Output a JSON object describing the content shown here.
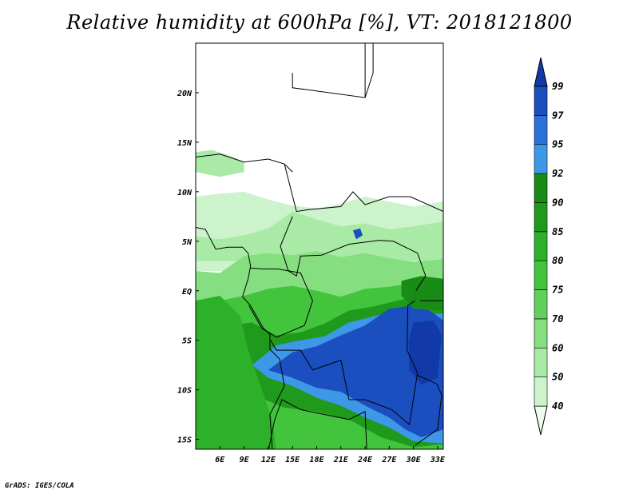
{
  "title": "Relative humidity at 600hPa [%], VT: 2018121800",
  "credit": "GrADS: IGES/COLA",
  "map": {
    "lon_range": [
      3,
      33.7
    ],
    "lat_range": [
      -16,
      25
    ],
    "lon_ticks": [
      {
        "value": 6,
        "label": "6E"
      },
      {
        "value": 9,
        "label": "9E"
      },
      {
        "value": 12,
        "label": "12E"
      },
      {
        "value": 15,
        "label": "15E"
      },
      {
        "value": 18,
        "label": "18E"
      },
      {
        "value": 21,
        "label": "21E"
      },
      {
        "value": 24,
        "label": "24E"
      },
      {
        "value": 27,
        "label": "27E"
      },
      {
        "value": 30,
        "label": "30E"
      },
      {
        "value": 33,
        "label": "33E"
      }
    ],
    "lat_ticks": [
      {
        "value": 20,
        "label": "20N"
      },
      {
        "value": 15,
        "label": "15N"
      },
      {
        "value": 10,
        "label": "10N"
      },
      {
        "value": 5,
        "label": "5N"
      },
      {
        "value": 0,
        "label": "EQ"
      },
      {
        "value": -5,
        "label": "5S"
      },
      {
        "value": -10,
        "label": "10S"
      },
      {
        "value": -15,
        "label": "15S"
      }
    ],
    "field_regions": [
      {
        "name": "sahel-band",
        "rh": 40,
        "poly": [
          [
            3,
            8
          ],
          [
            3,
            9.5
          ],
          [
            6,
            9.8
          ],
          [
            9,
            10
          ],
          [
            12,
            9.2
          ],
          [
            15,
            8.6
          ],
          [
            18,
            8.3
          ],
          [
            21,
            8.8
          ],
          [
            24,
            9.5
          ],
          [
            27,
            9
          ],
          [
            30,
            8.5
          ],
          [
            33.7,
            9
          ],
          [
            33.7,
            2
          ],
          [
            3,
            2
          ]
        ]
      },
      {
        "name": "west-patch",
        "rh": 50,
        "poly": [
          [
            3,
            14
          ],
          [
            5,
            14.2
          ],
          [
            7,
            13.7
          ],
          [
            9,
            13
          ],
          [
            9,
            12
          ],
          [
            6,
            11.5
          ],
          [
            3,
            12
          ]
        ]
      },
      {
        "name": "north-tongue",
        "rh": 50,
        "poly": [
          [
            15,
            8
          ],
          [
            18,
            7.2
          ],
          [
            21,
            6.5
          ],
          [
            24,
            6.8
          ],
          [
            27,
            6.2
          ],
          [
            30,
            6.5
          ],
          [
            33.7,
            7
          ],
          [
            33.7,
            3
          ],
          [
            3,
            3
          ],
          [
            3,
            5.5
          ],
          [
            6,
            5.2
          ],
          [
            9,
            5.6
          ],
          [
            12,
            6.3
          ]
        ]
      },
      {
        "name": "central-north",
        "rh": 60,
        "poly": [
          [
            3,
            2
          ],
          [
            6,
            1.8
          ],
          [
            9,
            3.5
          ],
          [
            12,
            3.8
          ],
          [
            15,
            3.6
          ],
          [
            18,
            4
          ],
          [
            21,
            3.4
          ],
          [
            24,
            3.8
          ],
          [
            27,
            3.3
          ],
          [
            30,
            2.9
          ],
          [
            33.7,
            3.2
          ],
          [
            33.7,
            -16
          ],
          [
            3,
            -16
          ]
        ]
      },
      {
        "name": "moist-belt",
        "rh": 75,
        "poly": [
          [
            3,
            -1.5
          ],
          [
            6,
            -1
          ],
          [
            9,
            -0.5
          ],
          [
            12,
            0.2
          ],
          [
            15,
            0.5
          ],
          [
            18,
            0
          ],
          [
            21,
            -0.6
          ],
          [
            24,
            0.2
          ],
          [
            27,
            0.4
          ],
          [
            30,
            0.8
          ],
          [
            33.7,
            0.5
          ],
          [
            33.7,
            -16
          ],
          [
            3,
            -16
          ]
        ]
      },
      {
        "name": "congo-basin",
        "rh": 85,
        "poly": [
          [
            4,
            -4
          ],
          [
            7,
            -3.5
          ],
          [
            10,
            -3.2
          ],
          [
            13,
            -4.5
          ],
          [
            16,
            -4.2
          ],
          [
            19,
            -3.3
          ],
          [
            22,
            -2
          ],
          [
            25,
            -1.6
          ],
          [
            28,
            -1
          ],
          [
            31,
            -0.5
          ],
          [
            33.7,
            -1
          ],
          [
            33.7,
            -15.5
          ],
          [
            30,
            -15.8
          ],
          [
            26,
            -14.8
          ],
          [
            22,
            -13
          ],
          [
            18,
            -12.2
          ],
          [
            14,
            -11.8
          ],
          [
            11,
            -10.8
          ],
          [
            8,
            -9.8
          ],
          [
            5,
            -8.5
          ],
          [
            3,
            -7
          ]
        ]
      },
      {
        "name": "southern-saturation",
        "rh": 92,
        "poly": [
          [
            13,
            -5.5
          ],
          [
            16,
            -5
          ],
          [
            19,
            -4.6
          ],
          [
            22,
            -3.2
          ],
          [
            25,
            -2.6
          ],
          [
            28,
            -2
          ],
          [
            31,
            -2.4
          ],
          [
            33.7,
            -2.3
          ],
          [
            33.7,
            -15.4
          ],
          [
            30,
            -15.2
          ],
          [
            27,
            -13.8
          ],
          [
            24,
            -12.8
          ],
          [
            21,
            -11.6
          ],
          [
            18,
            -10.8
          ],
          [
            15,
            -9.6
          ],
          [
            12,
            -8.8
          ],
          [
            10,
            -7.5
          ]
        ]
      },
      {
        "name": "saturated-core",
        "rh": 97,
        "poly": [
          [
            15,
            -6.2
          ],
          [
            18,
            -5.6
          ],
          [
            21,
            -4.5
          ],
          [
            24,
            -3.5
          ],
          [
            27,
            -1.8
          ],
          [
            30,
            -1.5
          ],
          [
            32,
            -2
          ],
          [
            33.7,
            -3
          ],
          [
            33.7,
            -14
          ],
          [
            31,
            -14.8
          ],
          [
            29,
            -14
          ],
          [
            27,
            -12.8
          ],
          [
            24,
            -11.6
          ],
          [
            21,
            -10.2
          ],
          [
            18,
            -9.8
          ],
          [
            15,
            -8.8
          ],
          [
            12,
            -8
          ]
        ]
      },
      {
        "name": "lake-victoria-pocket",
        "rh": 99,
        "poly": [
          [
            30,
            -3.2
          ],
          [
            32.5,
            -3
          ],
          [
            33.5,
            -4.5
          ],
          [
            33,
            -8.8
          ],
          [
            31,
            -9.5
          ],
          [
            29.5,
            -8
          ],
          [
            29.4,
            -5
          ]
        ]
      },
      {
        "name": "northern-speck",
        "rh": 97,
        "poly": [
          [
            22.5,
            6.1
          ],
          [
            23.4,
            6.3
          ],
          [
            23.7,
            5.6
          ],
          [
            22.9,
            5.2
          ]
        ]
      },
      {
        "name": "atlantic-margin",
        "rh": 80,
        "poly": [
          [
            3,
            -1
          ],
          [
            6,
            -0.5
          ],
          [
            8.5,
            -2.5
          ],
          [
            9.5,
            -6
          ],
          [
            11,
            -9.5
          ],
          [
            12.5,
            -13
          ],
          [
            13,
            -16
          ],
          [
            3,
            -16
          ]
        ]
      },
      {
        "name": "rift-valley-moisture",
        "rh": 90,
        "poly": [
          [
            28.5,
            1
          ],
          [
            31,
            1.5
          ],
          [
            33.7,
            1.2
          ],
          [
            33.7,
            -2
          ],
          [
            30,
            -1.8
          ],
          [
            28.5,
            -0.5
          ]
        ]
      }
    ],
    "boundaries": [
      [
        [
          3,
          13.5
        ],
        [
          6,
          13.8
        ],
        [
          9,
          13
        ],
        [
          12,
          13.3
        ],
        [
          14,
          12.8
        ],
        [
          15,
          12
        ]
      ],
      [
        [
          14,
          12.8
        ],
        [
          15.5,
          8
        ],
        [
          17,
          8.2
        ],
        [
          21,
          8.5
        ],
        [
          22.5,
          10
        ],
        [
          24,
          8.7
        ],
        [
          27,
          9.5
        ],
        [
          29.6,
          9.5
        ],
        [
          33.7,
          8
        ]
      ],
      [
        [
          15,
          22
        ],
        [
          15,
          20.5
        ],
        [
          24,
          19.5
        ],
        [
          24,
          25
        ]
      ],
      [
        [
          24,
          19.5
        ],
        [
          25,
          22
        ],
        [
          25,
          25
        ]
      ],
      [
        [
          15,
          7.5
        ],
        [
          13.5,
          4.5
        ],
        [
          14.5,
          2
        ],
        [
          15.5,
          1.5
        ],
        [
          16,
          3.5
        ],
        [
          18.6,
          3.6
        ],
        [
          22,
          4.7
        ],
        [
          25.8,
          5.1
        ],
        [
          27.5,
          5
        ],
        [
          30.5,
          3.8
        ],
        [
          31.5,
          1.5
        ],
        [
          30.3,
          0
        ]
      ],
      [
        [
          9.8,
          2.3
        ],
        [
          11.3,
          2.2
        ],
        [
          13.2,
          2.2
        ],
        [
          16,
          1.8
        ],
        [
          17.5,
          -1
        ],
        [
          16.5,
          -3.5
        ],
        [
          13,
          -4.7
        ],
        [
          11.2,
          -3.8
        ],
        [
          9.6,
          -1.5
        ]
      ],
      [
        [
          12.3,
          -5
        ],
        [
          13,
          -6
        ],
        [
          16,
          -6
        ],
        [
          17.5,
          -8
        ],
        [
          21,
          -7
        ],
        [
          22,
          -11
        ],
        [
          24,
          -11
        ],
        [
          27.3,
          -12
        ],
        [
          29.5,
          -13.5
        ],
        [
          30.5,
          -8.3
        ],
        [
          29.2,
          -6
        ],
        [
          29.3,
          -1.5
        ],
        [
          30.2,
          -1
        ]
      ],
      [
        [
          11.8,
          -17
        ],
        [
          12.8,
          -13
        ],
        [
          13.7,
          -11
        ],
        [
          16,
          -12
        ],
        [
          22,
          -13
        ],
        [
          24,
          -12.2
        ],
        [
          24.2,
          -16
        ]
      ],
      [
        [
          30.8,
          -1
        ],
        [
          34,
          -1
        ],
        [
          34.9,
          -4.6
        ]
      ],
      [
        [
          30.4,
          -8.5
        ],
        [
          32.9,
          -9.4
        ],
        [
          33.5,
          -10.5
        ],
        [
          33,
          -14
        ],
        [
          30.2,
          -15.6
        ]
      ],
      [
        [
          12.5,
          -16
        ],
        [
          12.2,
          -12.5
        ],
        [
          14,
          -9.6
        ],
        [
          13.4,
          -6.9
        ],
        [
          12.2,
          -5.9
        ],
        [
          12.2,
          -4.4
        ],
        [
          11.4,
          -3.8
        ],
        [
          9.8,
          -1.5
        ],
        [
          8.8,
          -0.6
        ],
        [
          9.5,
          1.2
        ],
        [
          9.8,
          2.5
        ],
        [
          9.5,
          3.8
        ],
        [
          8.8,
          4.4
        ],
        [
          7,
          4.4
        ],
        [
          5.5,
          4.2
        ],
        [
          4.2,
          6.2
        ],
        [
          3,
          6.4
        ]
      ]
    ],
    "colorbar": {
      "levels": [
        40,
        50,
        60,
        70,
        75,
        80,
        85,
        90,
        92,
        95,
        97,
        99
      ],
      "colors": [
        "#eefbee",
        "#cdf3cc",
        "#a9eaa6",
        "#85df80",
        "#63d05d",
        "#43c43d",
        "#2eb12a",
        "#1f9a1c",
        "#188c15",
        "#3e98e8",
        "#2a72d8",
        "#1b4fc0",
        "#113aa8"
      ]
    }
  }
}
